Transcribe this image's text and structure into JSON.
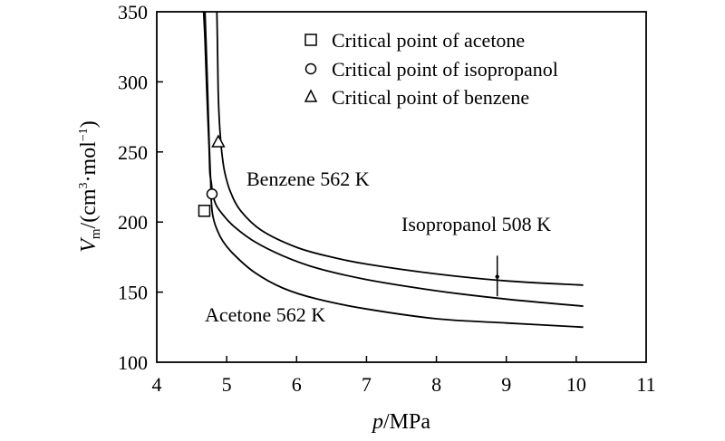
{
  "chart_data": {
    "type": "line",
    "xlabel": {
      "italic": "p",
      "rest": "/MPa"
    },
    "ylabel": {
      "italic": "V",
      "sub": "m",
      "mid": "/(cm",
      "sup1": "3",
      "mid2": "·mol",
      "sup2": "−1",
      "end": ")"
    },
    "xlim": [
      4,
      11
    ],
    "ylim": [
      100,
      350
    ],
    "x_ticks": [
      "4",
      "5",
      "6",
      "7",
      "8",
      "9",
      "10",
      "11"
    ],
    "y_ticks": [
      "100",
      "150",
      "200",
      "250",
      "300",
      "350"
    ],
    "series": [
      {
        "name": "Benzene 562 K",
        "label": "Benzene 562 K",
        "x": [
          4.86,
          4.87,
          4.88,
          4.9,
          4.93,
          4.97,
          5.05,
          5.2,
          5.5,
          6.0,
          6.5,
          7.0,
          8.0,
          9.0,
          10.1
        ],
        "y": [
          350,
          320,
          290,
          268,
          250,
          236,
          222,
          208,
          194,
          182,
          175,
          170,
          163,
          158,
          155
        ]
      },
      {
        "name": "Isopropanol 508 K",
        "label": "Isopropanol 508 K",
        "x": [
          4.67,
          4.69,
          4.71,
          4.73,
          4.75,
          4.76,
          4.78,
          4.8,
          4.85,
          4.95,
          5.1,
          5.4,
          5.8,
          6.3,
          7.0,
          8.0,
          9.0,
          10.1
        ],
        "y": [
          350,
          330,
          300,
          275,
          250,
          235,
          228,
          220,
          212,
          205,
          197,
          186,
          176,
          167,
          159,
          151,
          145,
          140
        ]
      },
      {
        "name": "Acetone 562 K",
        "label": "Acetone 562 K",
        "x": [
          4.69,
          4.71,
          4.73,
          4.75,
          4.77,
          4.78,
          4.8,
          4.85,
          4.95,
          5.1,
          5.4,
          5.8,
          6.3,
          7.0,
          8.0,
          9.0,
          10.1
        ],
        "y": [
          350,
          320,
          290,
          255,
          230,
          215,
          205,
          196,
          186,
          177,
          164,
          153,
          145,
          138,
          131,
          128,
          125
        ]
      }
    ],
    "critical_points": [
      {
        "name": "acetone",
        "marker": "square",
        "x": 4.68,
        "y": 208,
        "legend": "Critical point of acetone"
      },
      {
        "name": "isopropanol",
        "marker": "circle",
        "x": 4.79,
        "y": 220,
        "legend": "Critical point of isopropanol"
      },
      {
        "name": "benzene",
        "marker": "triangle",
        "x": 4.88,
        "y": 257,
        "legend": "Critical point of benzene"
      }
    ],
    "annotation": {
      "x": 8.87,
      "y": 161,
      "y_span": [
        147,
        176
      ]
    }
  }
}
